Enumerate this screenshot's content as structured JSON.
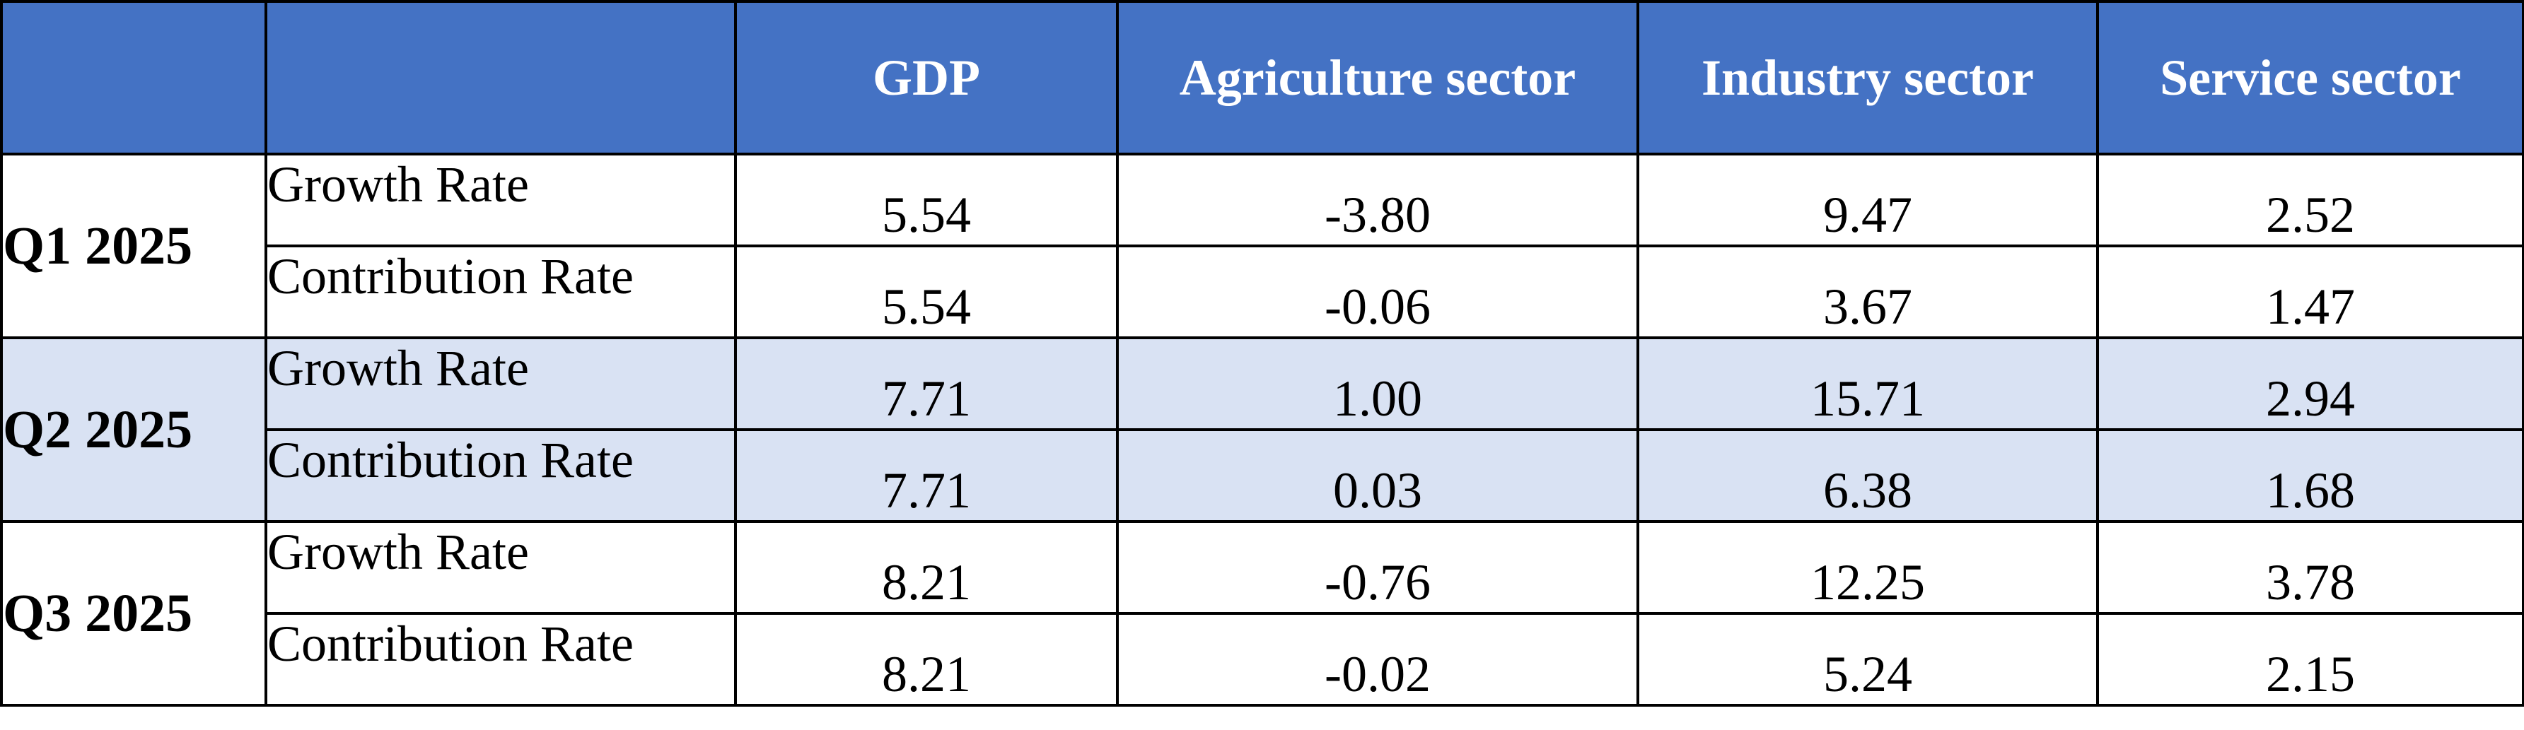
{
  "header": {
    "blank1": "",
    "blank2": "",
    "columns": [
      "GDP",
      "Agriculture sector",
      "Industry sector",
      "Service sector"
    ]
  },
  "quarters": [
    {
      "label": "Q1 2025",
      "rows": [
        {
          "metric": "Growth Rate",
          "values": [
            "5.54",
            "-3.80",
            "9.47",
            "2.52"
          ]
        },
        {
          "metric": "Contribution Rate",
          "values": [
            "5.54",
            "-0.06",
            "3.67",
            "1.47"
          ]
        }
      ]
    },
    {
      "label": "Q2 2025",
      "rows": [
        {
          "metric": "Growth Rate",
          "values": [
            "7.71",
            "1.00",
            "15.71",
            "2.94"
          ]
        },
        {
          "metric": "Contribution Rate",
          "values": [
            "7.71",
            "0.03",
            "6.38",
            "1.68"
          ]
        }
      ]
    },
    {
      "label": "Q3 2025",
      "rows": [
        {
          "metric": "Growth Rate",
          "values": [
            "8.21",
            "-0.76",
            "12.25",
            "3.78"
          ]
        },
        {
          "metric": "Contribution Rate",
          "values": [
            "8.21",
            "-0.02",
            "5.24",
            "2.15"
          ]
        }
      ]
    }
  ],
  "colors": {
    "header_bg": "#4472c4",
    "header_text": "#ffffff",
    "shaded_row_bg": "#d9e2f3",
    "border": "#000000"
  }
}
